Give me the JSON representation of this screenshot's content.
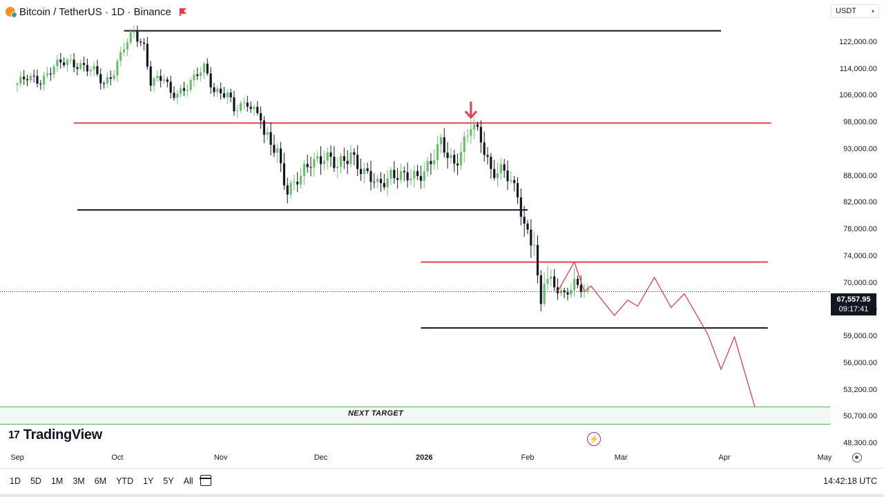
{
  "header": {
    "symbol": "Bitcoin / TetherUS · 1D · Binance"
  },
  "currency_selector": {
    "value": "USDT"
  },
  "price_tag": {
    "price": "67,557.95",
    "countdown": "09:17:41"
  },
  "annotation": {
    "next_target": "NEXT TARGET"
  },
  "branding": {
    "name": "TradingView"
  },
  "time_ranges": [
    "1D",
    "5D",
    "1M",
    "3M",
    "6M",
    "YTD",
    "1Y",
    "5Y",
    "All"
  ],
  "clock": "14:42:18 UTC",
  "colors": {
    "up": "#6cbd6e",
    "down": "#131722",
    "resistance": "#e3404c",
    "support": "#131722",
    "projection": "#e3404c"
  },
  "chart_data": {
    "type": "candlestick",
    "symbol": "BTCUSDT",
    "interval": "1D",
    "exchange": "Binance",
    "current_price": 67557.95,
    "y_axis_ticks": [
      {
        "label": "122,000.00",
        "value": 122000
      },
      {
        "label": "114,000.00",
        "value": 114000
      },
      {
        "label": "106,000.00",
        "value": 106000
      },
      {
        "label": "98,000.00",
        "value": 98000
      },
      {
        "label": "93,000.00",
        "value": 93000
      },
      {
        "label": "88,000.00",
        "value": 88000
      },
      {
        "label": "82,000.00",
        "value": 82000
      },
      {
        "label": "78,000.00",
        "value": 78000
      },
      {
        "label": "74,000.00",
        "value": 74000
      },
      {
        "label": "70,000.00",
        "value": 70000
      },
      {
        "label": "62,000.00",
        "value": 62000
      },
      {
        "label": "59,000.00",
        "value": 59000
      },
      {
        "label": "56,000.00",
        "value": 56000
      },
      {
        "label": "53,200.00",
        "value": 53200
      },
      {
        "label": "50,700.00",
        "value": 50700
      },
      {
        "label": "48,300.00",
        "value": 48300
      }
    ],
    "x_axis_ticks": [
      {
        "label": "Sep",
        "date": "2025-09-01"
      },
      {
        "label": "Oct",
        "date": "2025-10-01"
      },
      {
        "label": "Nov",
        "date": "2025-11-01"
      },
      {
        "label": "Dec",
        "date": "2025-12-01"
      },
      {
        "label": "2026",
        "date": "2026-01-01",
        "bold": true
      },
      {
        "label": "Feb",
        "date": "2026-02-01"
      },
      {
        "label": "Mar",
        "date": "2026-03-01"
      },
      {
        "label": "Apr",
        "date": "2026-04-01"
      },
      {
        "label": "May",
        "date": "2026-05-01"
      }
    ],
    "closes": [
      {
        "date": "2025-09-01",
        "close": 109800
      },
      {
        "date": "2025-09-04",
        "close": 111200
      },
      {
        "date": "2025-09-08",
        "close": 110900
      },
      {
        "date": "2025-09-12",
        "close": 114800
      },
      {
        "date": "2025-09-16",
        "close": 116300
      },
      {
        "date": "2025-09-20",
        "close": 115600
      },
      {
        "date": "2025-09-24",
        "close": 113100
      },
      {
        "date": "2025-09-27",
        "close": 109600
      },
      {
        "date": "2025-09-30",
        "close": 113900
      },
      {
        "date": "2025-10-03",
        "close": 120600
      },
      {
        "date": "2025-10-06",
        "close": 124700
      },
      {
        "date": "2025-10-09",
        "close": 121200
      },
      {
        "date": "2025-10-11",
        "close": 110700
      },
      {
        "date": "2025-10-15",
        "close": 111000
      },
      {
        "date": "2025-10-17",
        "close": 106500
      },
      {
        "date": "2025-10-21",
        "close": 108400
      },
      {
        "date": "2025-10-24",
        "close": 111000
      },
      {
        "date": "2025-10-27",
        "close": 114500
      },
      {
        "date": "2025-10-30",
        "close": 108200
      },
      {
        "date": "2025-11-03",
        "close": 106300
      },
      {
        "date": "2025-11-05",
        "close": 101500
      },
      {
        "date": "2025-11-09",
        "close": 104600
      },
      {
        "date": "2025-11-13",
        "close": 99600
      },
      {
        "date": "2025-11-14",
        "close": 95000
      },
      {
        "date": "2025-11-18",
        "close": 92800
      },
      {
        "date": "2025-11-21",
        "close": 85100
      },
      {
        "date": "2025-11-25",
        "close": 87400
      },
      {
        "date": "2025-11-28",
        "close": 91000
      },
      {
        "date": "2025-12-02",
        "close": 92000
      },
      {
        "date": "2025-12-06",
        "close": 89400
      },
      {
        "date": "2025-12-10",
        "close": 92800
      },
      {
        "date": "2025-12-14",
        "close": 88200
      },
      {
        "date": "2025-12-18",
        "close": 86200
      },
      {
        "date": "2025-12-22",
        "close": 88600
      },
      {
        "date": "2025-12-26",
        "close": 87300
      },
      {
        "date": "2025-12-30",
        "close": 88400
      },
      {
        "date": "2026-01-03",
        "close": 90500
      },
      {
        "date": "2026-01-06",
        "close": 93800
      },
      {
        "date": "2026-01-10",
        "close": 90700
      },
      {
        "date": "2026-01-14",
        "close": 95400
      },
      {
        "date": "2026-01-15",
        "close": 97300
      },
      {
        "date": "2026-01-18",
        "close": 95100
      },
      {
        "date": "2026-01-21",
        "close": 89500
      },
      {
        "date": "2026-01-25",
        "close": 88500
      },
      {
        "date": "2026-01-29",
        "close": 84200
      },
      {
        "date": "2026-01-31",
        "close": 78800
      },
      {
        "date": "2026-02-03",
        "close": 76000
      },
      {
        "date": "2026-02-05",
        "close": 63000
      },
      {
        "date": "2026-02-06",
        "close": 70500
      },
      {
        "date": "2026-02-09",
        "close": 69800
      },
      {
        "date": "2026-02-12",
        "close": 66800
      },
      {
        "date": "2026-02-15",
        "close": 68900
      },
      {
        "date": "2026-02-19",
        "close": 67558
      }
    ],
    "horizontal_levels": [
      {
        "kind": "support",
        "color": "black",
        "value": 125600,
        "from": "2025-10-03",
        "to": "2026-03-31"
      },
      {
        "kind": "resistance",
        "color": "red",
        "value": 98000,
        "from": "2025-09-18",
        "to": "2026-04-15"
      },
      {
        "kind": "support",
        "color": "black",
        "value": 81000,
        "from": "2025-09-19",
        "to": "2026-02-01"
      },
      {
        "kind": "resistance",
        "color": "red",
        "value": 73200,
        "from": "2025-12-31",
        "to": "2026-04-14"
      },
      {
        "kind": "support",
        "color": "black",
        "value": 60000,
        "from": "2025-12-31",
        "to": "2026-04-14"
      }
    ],
    "projection_path": [
      {
        "date": "2026-02-10",
        "value": 67600
      },
      {
        "date": "2026-02-15",
        "value": 73200
      },
      {
        "date": "2026-02-18",
        "value": 67600
      },
      {
        "date": "2026-02-20",
        "value": 69200
      },
      {
        "date": "2026-02-27",
        "value": 61400
      },
      {
        "date": "2026-03-03",
        "value": 65000
      },
      {
        "date": "2026-03-06",
        "value": 63200
      },
      {
        "date": "2026-03-11",
        "value": 70900
      },
      {
        "date": "2026-03-16",
        "value": 62800
      },
      {
        "date": "2026-03-20",
        "value": 66900
      },
      {
        "date": "2026-03-27",
        "value": 59300
      },
      {
        "date": "2026-03-31",
        "value": 55400
      },
      {
        "date": "2026-04-04",
        "value": 59000
      },
      {
        "date": "2026-04-11",
        "value": 50700
      }
    ],
    "markers": [
      {
        "kind": "down-arrow",
        "color": "red",
        "date": "2026-01-15",
        "value": 101500
      }
    ],
    "zones": [
      {
        "label": "NEXT TARGET",
        "from_value": 50400,
        "to_value": 52600,
        "color": "green"
      }
    ]
  }
}
